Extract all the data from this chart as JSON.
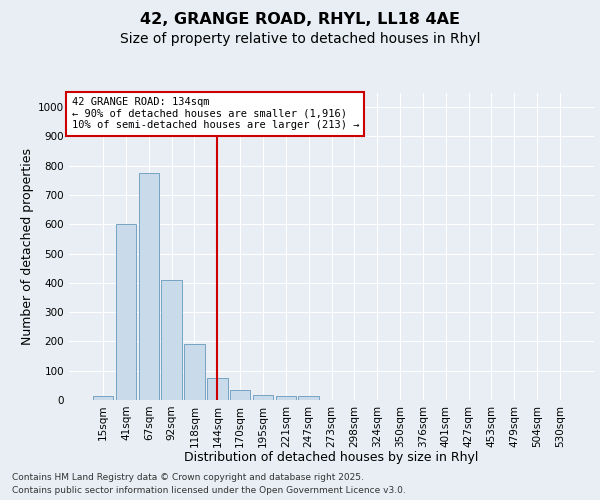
{
  "title": "42, GRANGE ROAD, RHYL, LL18 4AE",
  "subtitle": "Size of property relative to detached houses in Rhyl",
  "xlabel": "Distribution of detached houses by size in Rhyl",
  "ylabel": "Number of detached properties",
  "bar_color": "#c9daea",
  "bar_edgecolor": "#6699bb",
  "background_color": "#e8eef4",
  "grid_color": "#ffffff",
  "categories": [
    "15sqm",
    "41sqm",
    "67sqm",
    "92sqm",
    "118sqm",
    "144sqm",
    "170sqm",
    "195sqm",
    "221sqm",
    "247sqm",
    "273sqm",
    "298sqm",
    "324sqm",
    "350sqm",
    "376sqm",
    "401sqm",
    "427sqm",
    "453sqm",
    "479sqm",
    "504sqm",
    "530sqm"
  ],
  "values": [
    15,
    600,
    775,
    410,
    190,
    75,
    35,
    18,
    12,
    12,
    0,
    0,
    0,
    0,
    0,
    0,
    0,
    0,
    0,
    0,
    0
  ],
  "ylim": [
    0,
    1050
  ],
  "yticks": [
    0,
    100,
    200,
    300,
    400,
    500,
    600,
    700,
    800,
    900,
    1000
  ],
  "vline_index": 5,
  "vline_color": "#cc0000",
  "annotation_text": "42 GRANGE ROAD: 134sqm\n← 90% of detached houses are smaller (1,916)\n10% of semi-detached houses are larger (213) →",
  "annotation_box_color": "#cc0000",
  "footer_line1": "Contains HM Land Registry data © Crown copyright and database right 2025.",
  "footer_line2": "Contains public sector information licensed under the Open Government Licence v3.0.",
  "title_fontsize": 11.5,
  "subtitle_fontsize": 10,
  "tick_fontsize": 7.5,
  "label_fontsize": 9,
  "annotation_fontsize": 7.5
}
